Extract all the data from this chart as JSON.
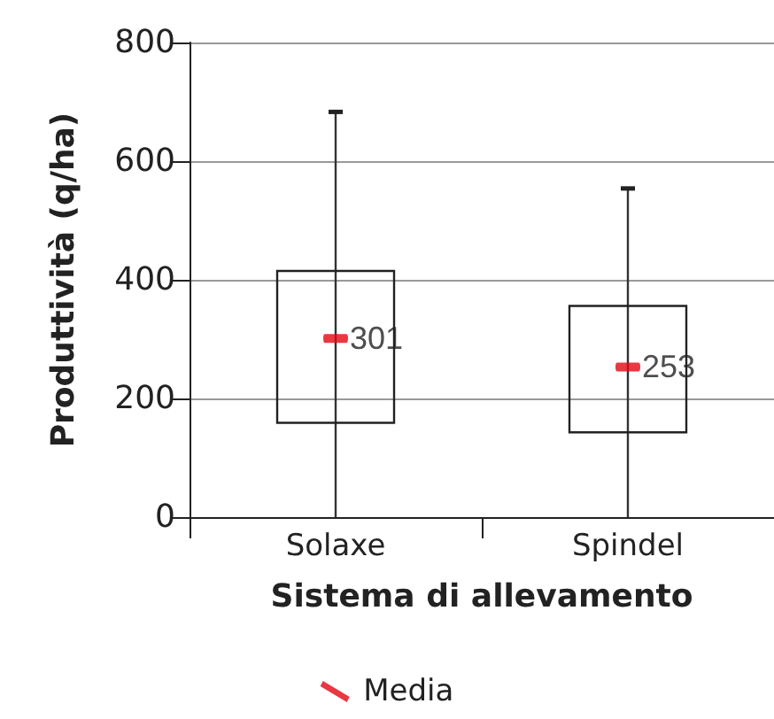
{
  "chart_data": {
    "type": "box",
    "xlabel": "Sistema di allevamento",
    "ylabel": "Produttività (q/ha)",
    "categories": [
      "Solaxe",
      "Spindel"
    ],
    "boxes": [
      {
        "low": 0,
        "q1": 159,
        "q3": 415,
        "high": 683
      },
      {
        "low": 0,
        "q1": 143,
        "q3": 356,
        "high": 554
      }
    ],
    "series": [
      {
        "type": "scatter",
        "name": "Media",
        "color": "#e30613",
        "x": [
          "Solaxe",
          "Spindel"
        ],
        "values": [
          301,
          253
        ]
      }
    ],
    "data_labels": true,
    "ylim": [
      0,
      800
    ],
    "yticks": [
      0,
      200,
      400,
      600,
      800
    ],
    "grid": "y",
    "legend": "bottom"
  }
}
